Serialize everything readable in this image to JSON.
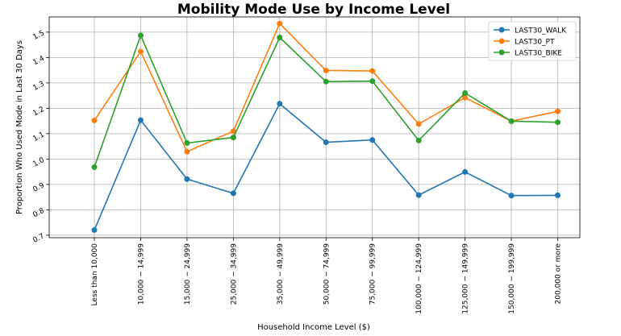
{
  "chart_data": {
    "type": "line",
    "title": "Mobility Mode Use by Income Level",
    "xlabel": "Household Income Level ($)",
    "ylabel": "Proportion Who Used Mode in Last 30 Days",
    "categories": [
      "Less than 10,000",
      "10,000 − 14,999",
      "15,000 − 24,999",
      "25,000 − 34,999",
      "35,000 − 49,999",
      "50,000 − 74,999",
      "75,000 − 99,999",
      "100,000 − 124,999",
      "125,000 − 149,999",
      "150,000 − 199,999",
      "200,000 or more"
    ],
    "yticks": [
      0.7,
      0.8,
      0.9,
      1.0,
      1.1,
      1.2,
      1.3,
      1.4,
      1.5
    ],
    "ylim": [
      0.69,
      1.56
    ],
    "grid": true,
    "legend_position": "top-right",
    "series": [
      {
        "name": "LAST30_WALK",
        "color": "#1f77b4",
        "values": [
          0.72,
          1.153,
          0.921,
          0.865,
          1.218,
          1.066,
          1.075,
          0.858,
          0.949,
          0.856,
          0.857
        ]
      },
      {
        "name": "LAST30_PT",
        "color": "#ff7f0e",
        "values": [
          1.152,
          1.424,
          1.029,
          1.11,
          1.534,
          1.349,
          1.347,
          1.138,
          1.242,
          1.149,
          1.188
        ]
      },
      {
        "name": "LAST30_BIKE",
        "color": "#2ca02c",
        "values": [
          0.968,
          1.487,
          1.063,
          1.085,
          1.479,
          1.305,
          1.307,
          1.073,
          1.26,
          1.149,
          1.145
        ]
      }
    ]
  }
}
